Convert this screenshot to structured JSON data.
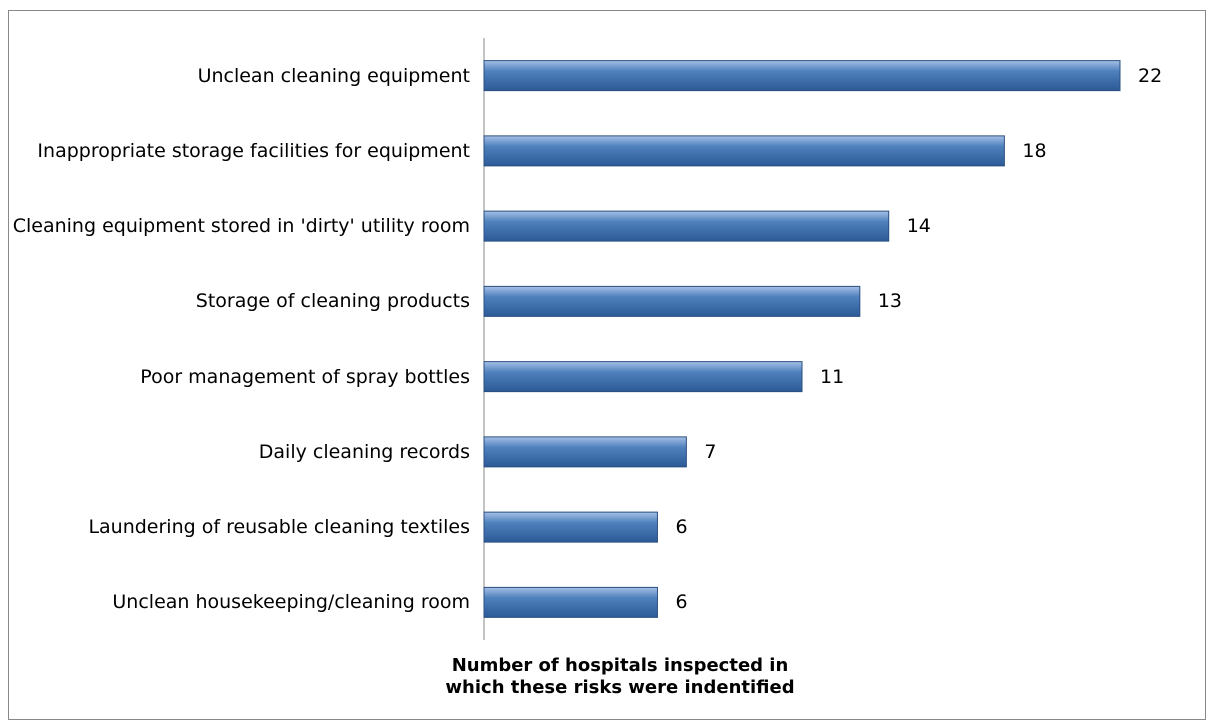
{
  "chart_data": {
    "type": "bar",
    "orientation": "horizontal",
    "xlabel": "Number of hospitals inspected in which these risks were indentified",
    "categories": [
      "Unclean cleaning equipment",
      "Inappropriate storage facilities for equipment",
      "Cleaning equipment stored in 'dirty' utility room",
      "Storage of cleaning products",
      "Poor management of spray bottles",
      "Daily cleaning records",
      "Laundering of reusable cleaning textiles",
      "Unclean housekeeping/cleaning room"
    ],
    "values": [
      22,
      18,
      14,
      13,
      11,
      7,
      6,
      6
    ],
    "color": "#4f81bd"
  }
}
